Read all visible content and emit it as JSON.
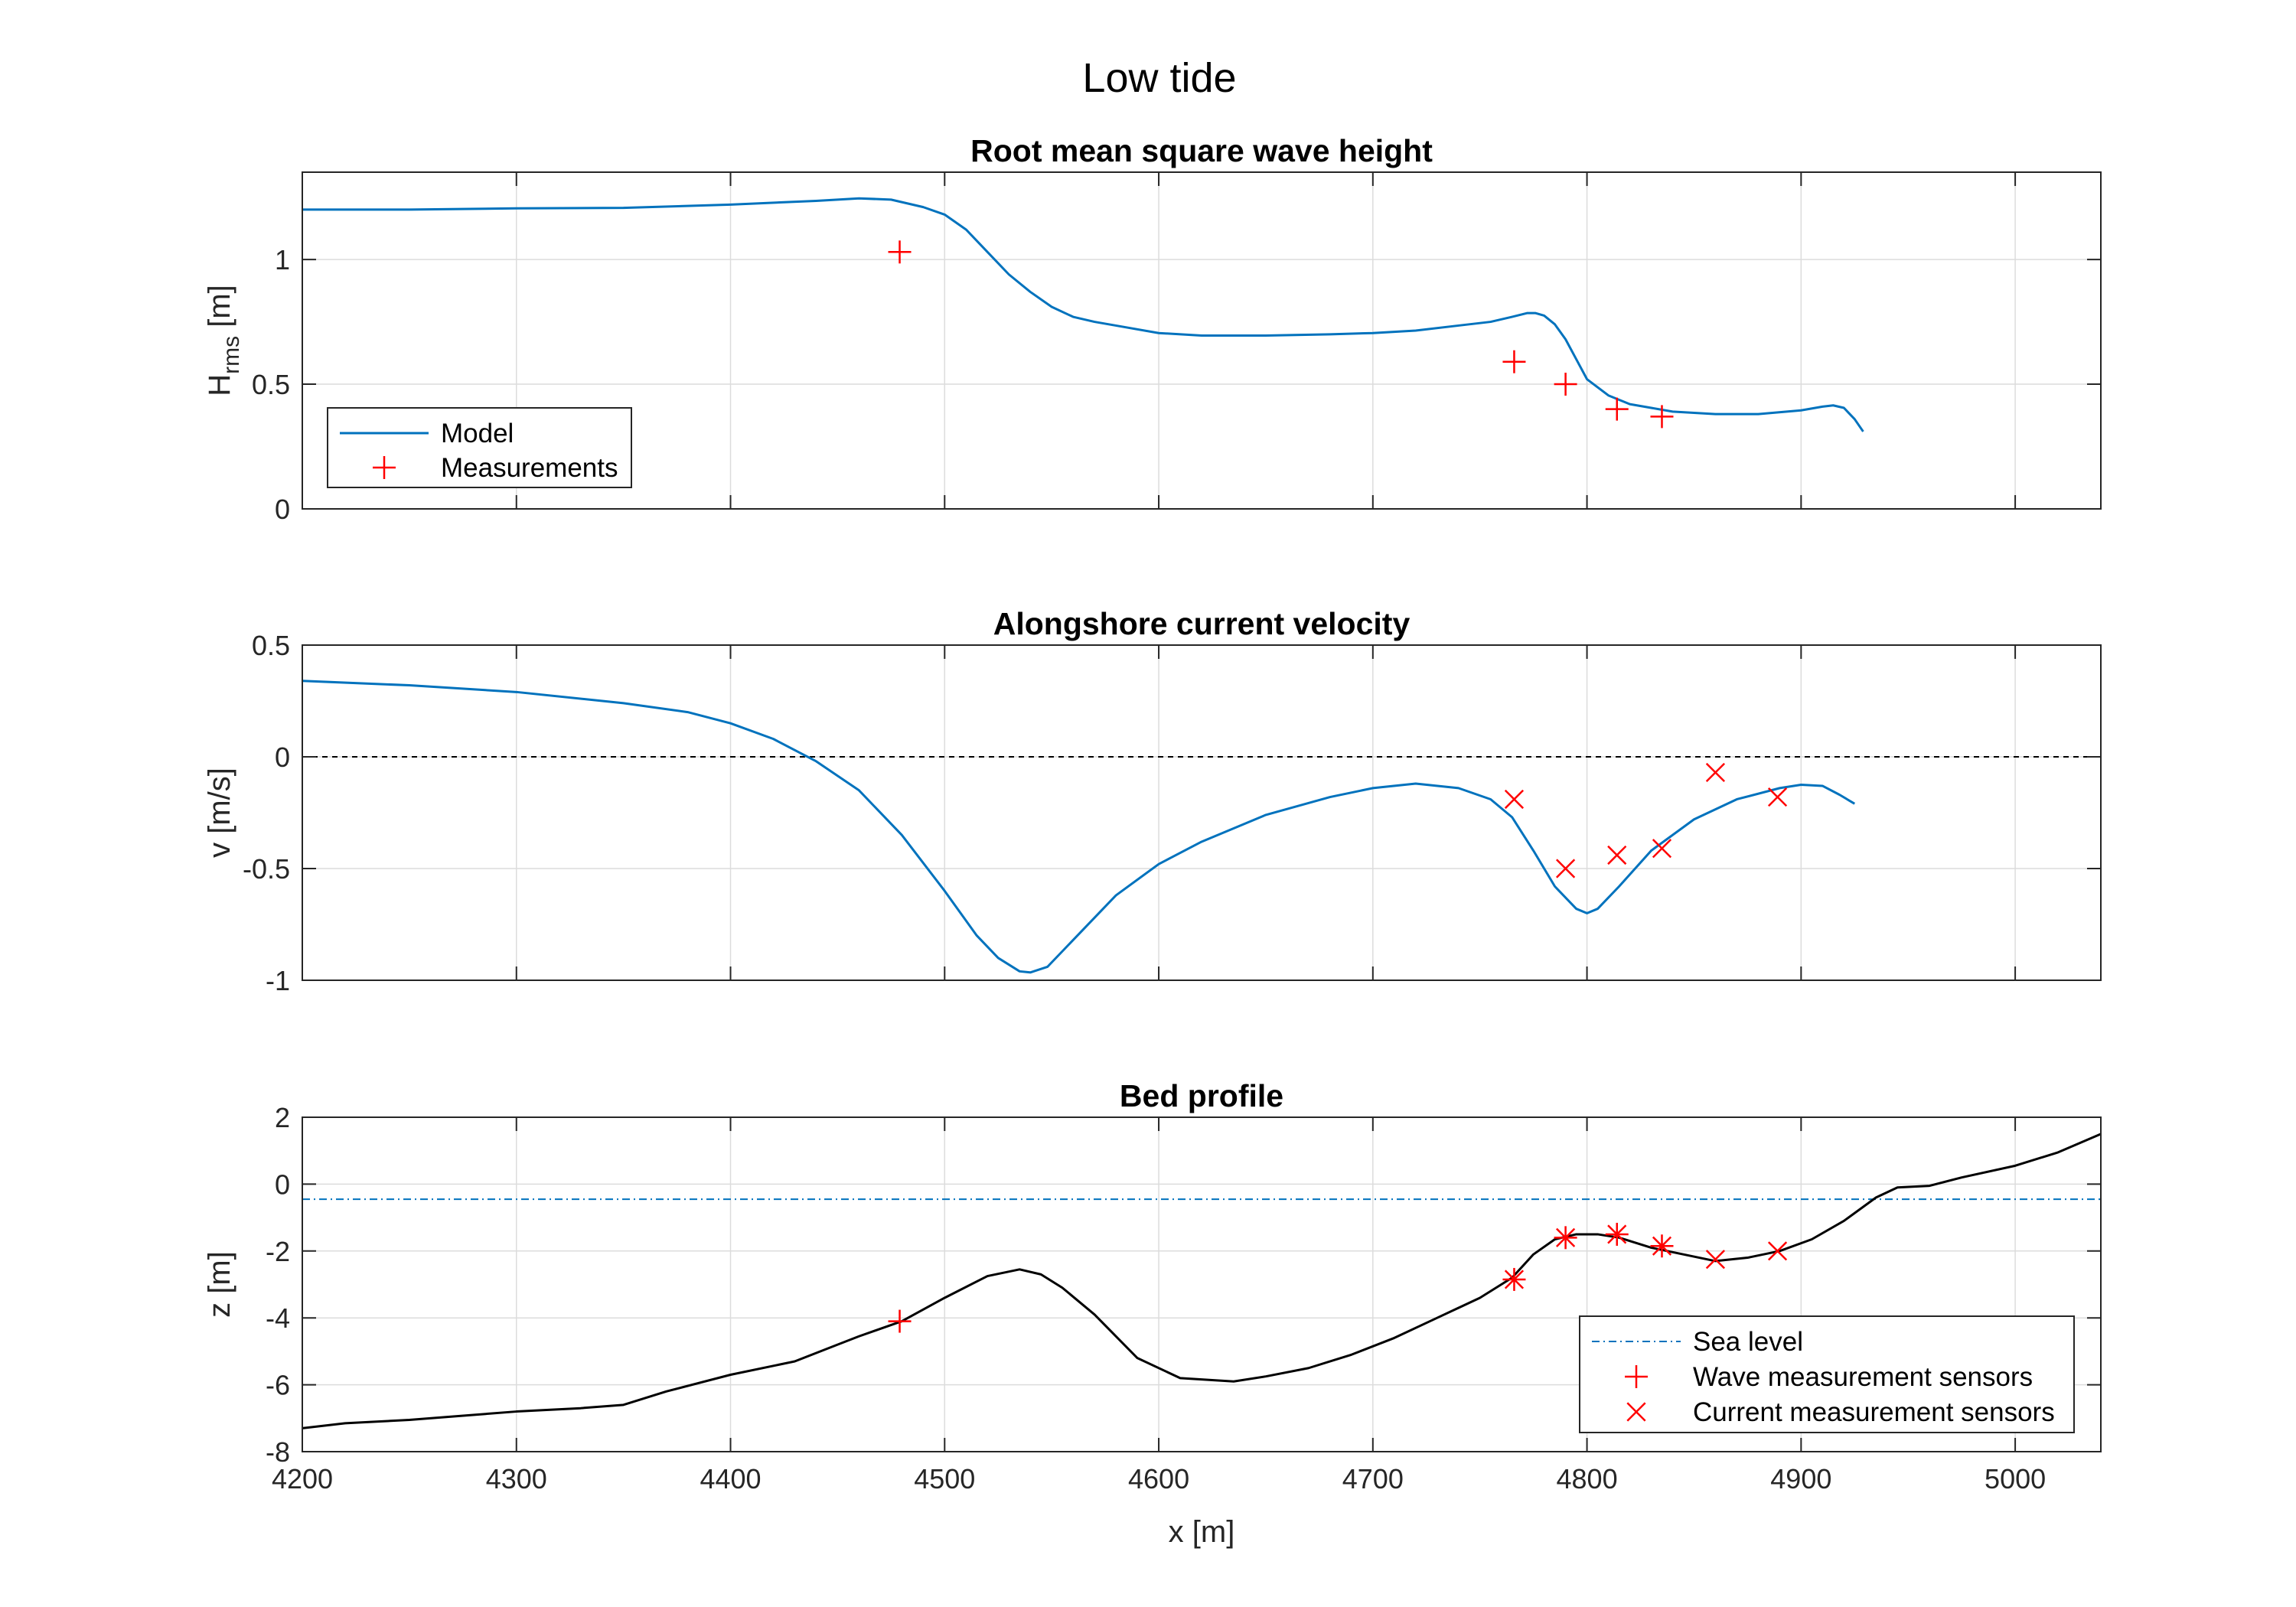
{
  "figure": {
    "title": "Low tide",
    "xlabel": "x [m]"
  },
  "chart_data": [
    {
      "type": "line",
      "title": "Root mean square wave height",
      "ylabel_main": "H",
      "ylabel_sub": "rms",
      "ylabel_unit": " [m]",
      "xlim": [
        4200,
        5040
      ],
      "ylim": [
        0,
        1.35
      ],
      "xticks": [
        4200,
        4300,
        4400,
        4500,
        4600,
        4700,
        4800,
        4900,
        5000
      ],
      "yticks": [
        0,
        0.5,
        1
      ],
      "ytick_labels": [
        "0",
        "0.5",
        "1"
      ],
      "grid": true,
      "legend": {
        "placement": "bottom-left",
        "entries": [
          "Model",
          "Measurements"
        ]
      },
      "series": [
        {
          "name": "Model",
          "kind": "line",
          "color": "#0072BD",
          "x": [
            4200,
            4250,
            4300,
            4350,
            4400,
            4440,
            4460,
            4475,
            4490,
            4500,
            4510,
            4520,
            4530,
            4540,
            4550,
            4560,
            4570,
            4580,
            4600,
            4620,
            4650,
            4680,
            4700,
            4720,
            4740,
            4755,
            4765,
            4772,
            4776,
            4780,
            4785,
            4790,
            4795,
            4800,
            4810,
            4820,
            4830,
            4840,
            4860,
            4880,
            4900,
            4910,
            4915,
            4920,
            4925,
            4929
          ],
          "y": [
            1.2,
            1.2,
            1.205,
            1.207,
            1.22,
            1.235,
            1.245,
            1.24,
            1.21,
            1.18,
            1.12,
            1.03,
            0.94,
            0.87,
            0.81,
            0.77,
            0.75,
            0.735,
            0.705,
            0.695,
            0.695,
            0.7,
            0.705,
            0.715,
            0.735,
            0.75,
            0.77,
            0.785,
            0.785,
            0.775,
            0.74,
            0.68,
            0.6,
            0.52,
            0.455,
            0.42,
            0.405,
            0.39,
            0.38,
            0.38,
            0.395,
            0.41,
            0.415,
            0.405,
            0.36,
            0.31
          ]
        },
        {
          "name": "Measurements",
          "kind": "plus",
          "color": "#FF0000",
          "x": [
            4479,
            4766,
            4790,
            4814,
            4835
          ],
          "y": [
            1.03,
            0.59,
            0.5,
            0.4,
            0.37
          ]
        }
      ]
    },
    {
      "type": "line",
      "title": "Alongshore current velocity",
      "ylabel": "v [m/s]",
      "xlim": [
        4200,
        5040
      ],
      "ylim": [
        -1,
        0.5
      ],
      "xticks": [
        4200,
        4300,
        4400,
        4500,
        4600,
        4700,
        4800,
        4900,
        5000
      ],
      "yticks": [
        -1,
        -0.5,
        0,
        0.5
      ],
      "ytick_labels": [
        "-1",
        "-0.5",
        "0",
        "0.5"
      ],
      "grid": true,
      "reference_line": {
        "y": 0,
        "style": "dashed",
        "color": "#000000"
      },
      "series": [
        {
          "name": "Model",
          "kind": "line",
          "color": "#0072BD",
          "x": [
            4200,
            4250,
            4300,
            4350,
            4380,
            4400,
            4420,
            4440,
            4460,
            4480,
            4500,
            4515,
            4525,
            4535,
            4540,
            4548,
            4560,
            4580,
            4600,
            4620,
            4650,
            4680,
            4700,
            4720,
            4740,
            4755,
            4765,
            4775,
            4785,
            4795,
            4800,
            4805,
            4815,
            4830,
            4850,
            4870,
            4890,
            4900,
            4910,
            4918,
            4925
          ],
          "y": [
            0.34,
            0.32,
            0.29,
            0.24,
            0.2,
            0.15,
            0.08,
            -0.02,
            -0.15,
            -0.35,
            -0.6,
            -0.8,
            -0.9,
            -0.96,
            -0.965,
            -0.94,
            -0.82,
            -0.62,
            -0.48,
            -0.38,
            -0.26,
            -0.18,
            -0.14,
            -0.12,
            -0.14,
            -0.19,
            -0.27,
            -0.42,
            -0.58,
            -0.68,
            -0.7,
            -0.68,
            -0.58,
            -0.42,
            -0.28,
            -0.19,
            -0.14,
            -0.125,
            -0.13,
            -0.17,
            -0.21
          ]
        },
        {
          "name": "Measurements",
          "kind": "cross",
          "color": "#FF0000",
          "x": [
            4766,
            4790,
            4814,
            4835,
            4860,
            4889
          ],
          "y": [
            -0.19,
            -0.5,
            -0.44,
            -0.41,
            -0.07,
            -0.18
          ]
        }
      ]
    },
    {
      "type": "line",
      "title": "Bed profile",
      "ylabel": "z [m]",
      "xlim": [
        4200,
        5040
      ],
      "ylim": [
        -8,
        2
      ],
      "xticks": [
        4200,
        4300,
        4400,
        4500,
        4600,
        4700,
        4800,
        4900,
        5000
      ],
      "xtick_labels": [
        "4200",
        "4300",
        "4400",
        "4500",
        "4600",
        "4700",
        "4800",
        "4900",
        "5000"
      ],
      "yticks": [
        -8,
        -6,
        -4,
        -2,
        0,
        2
      ],
      "ytick_labels": [
        "-8",
        "-6",
        "-4",
        "-2",
        "0",
        "2"
      ],
      "grid": true,
      "legend": {
        "placement": "bottom-right",
        "entries": [
          "Sea level",
          "Wave measurement sensors",
          "Current measurement sensors"
        ]
      },
      "series": [
        {
          "name": "Sea level",
          "kind": "dashdot",
          "color": "#0072BD",
          "x": [
            4200,
            5040
          ],
          "y": [
            -0.45,
            -0.45
          ]
        },
        {
          "name": "Bed profile",
          "kind": "line",
          "color": "#000000",
          "x": [
            4200,
            4220,
            4250,
            4270,
            4300,
            4330,
            4350,
            4370,
            4400,
            4430,
            4450,
            4460,
            4480,
            4500,
            4520,
            4535,
            4545,
            4555,
            4570,
            4590,
            4610,
            4635,
            4650,
            4670,
            4690,
            4710,
            4730,
            4750,
            4765,
            4775,
            4785,
            4795,
            4805,
            4815,
            4830,
            4845,
            4860,
            4875,
            4890,
            4905,
            4920,
            4935,
            4945,
            4960,
            4975,
            5000,
            5020,
            5040
          ],
          "y": [
            -7.3,
            -7.15,
            -7.05,
            -6.95,
            -6.8,
            -6.7,
            -6.6,
            -6.2,
            -5.7,
            -5.3,
            -4.8,
            -4.55,
            -4.1,
            -3.4,
            -2.75,
            -2.55,
            -2.7,
            -3.1,
            -3.9,
            -5.2,
            -5.8,
            -5.9,
            -5.75,
            -5.5,
            -5.1,
            -4.6,
            -4.0,
            -3.4,
            -2.8,
            -2.1,
            -1.65,
            -1.5,
            -1.5,
            -1.6,
            -1.9,
            -2.1,
            -2.3,
            -2.2,
            -2.0,
            -1.65,
            -1.1,
            -0.4,
            -0.1,
            -0.05,
            0.2,
            0.55,
            0.95,
            1.5
          ]
        },
        {
          "name": "Wave measurement sensors",
          "kind": "plus",
          "color": "#FF0000",
          "x": [
            4479,
            4766,
            4790,
            4814,
            4835
          ],
          "y": [
            -4.1,
            -2.85,
            -1.6,
            -1.5,
            -1.85
          ]
        },
        {
          "name": "Current measurement sensors",
          "kind": "cross",
          "color": "#FF0000",
          "x": [
            4766,
            4790,
            4814,
            4835,
            4860,
            4889
          ],
          "y": [
            -2.85,
            -1.6,
            -1.5,
            -1.85,
            -2.25,
            -2.0
          ]
        }
      ]
    }
  ]
}
